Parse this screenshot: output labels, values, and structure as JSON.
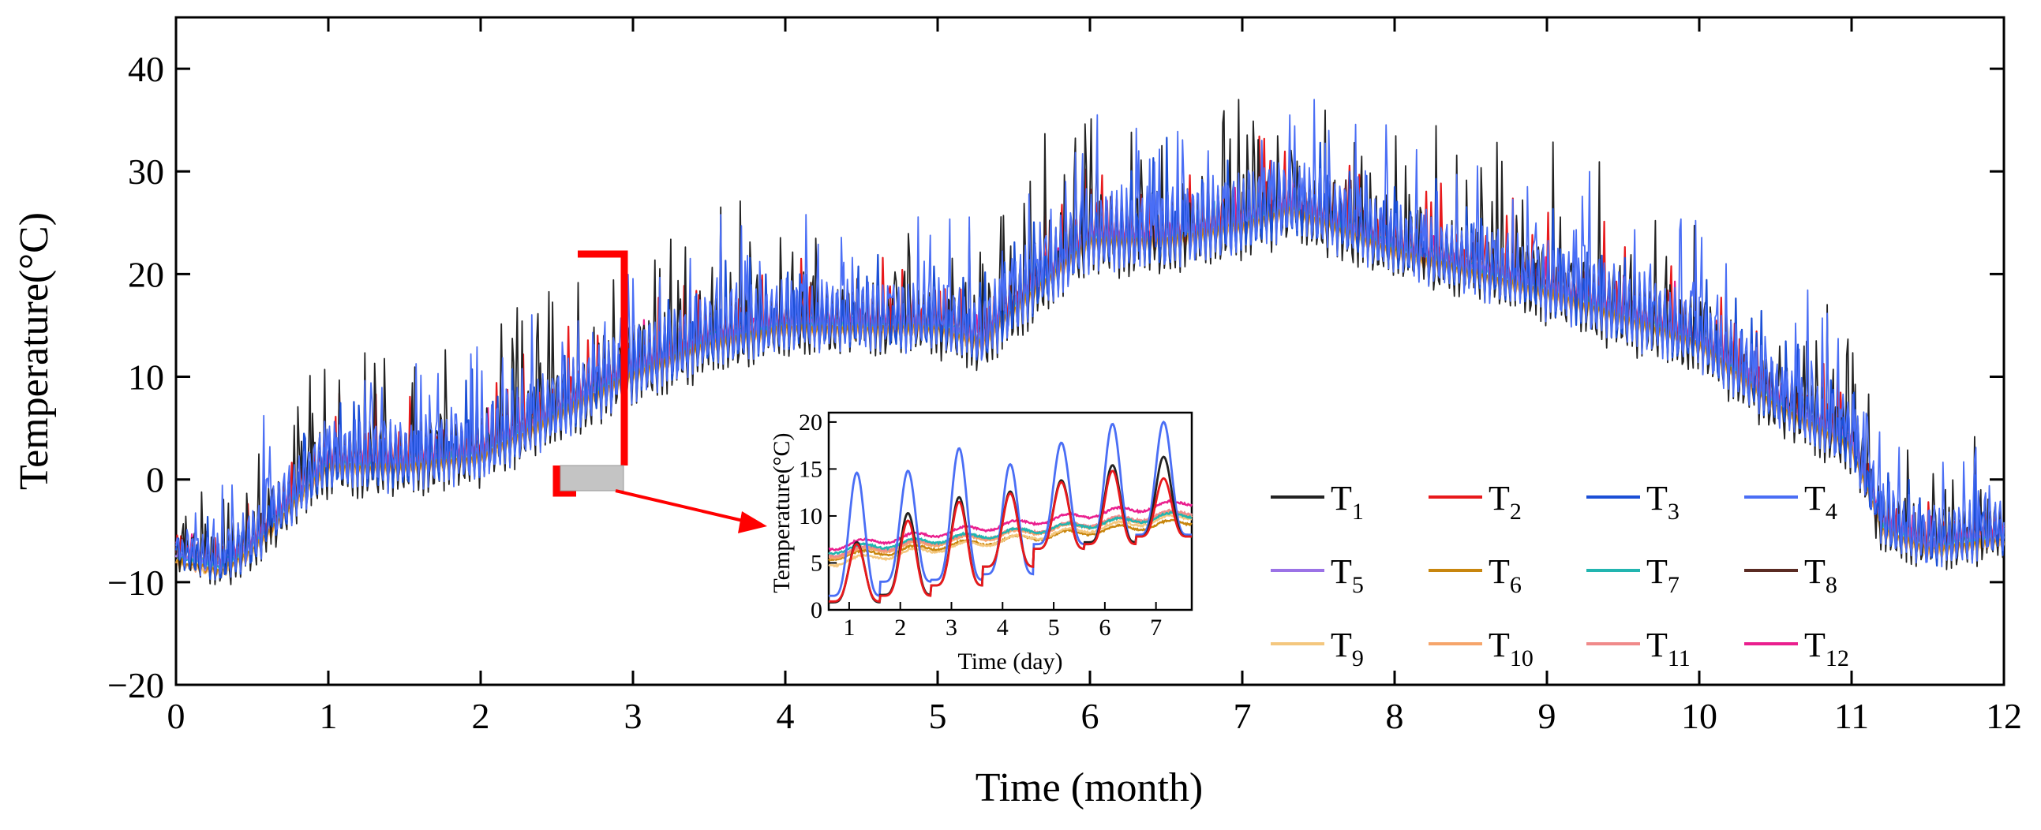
{
  "chart_data": {
    "type": "line",
    "main": {
      "xlabel": "Time (month)",
      "ylabel": "Temperature(°C)",
      "xlim": [
        0,
        12
      ],
      "ylim": [
        -20,
        45
      ],
      "xticks": [
        0,
        1,
        2,
        3,
        4,
        5,
        6,
        7,
        8,
        9,
        10,
        11,
        12
      ],
      "yticks": [
        -20,
        -10,
        0,
        10,
        20,
        30,
        40
      ],
      "grid": false,
      "legend_placement": "bottom-right",
      "legend": [
        {
          "base": "T",
          "sub": "1",
          "color": "#222222"
        },
        {
          "base": "T",
          "sub": "2",
          "color": "#e8191c"
        },
        {
          "base": "T",
          "sub": "3",
          "color": "#1b4fd6"
        },
        {
          "base": "T",
          "sub": "4",
          "color": "#4a6ef5"
        },
        {
          "base": "T",
          "sub": "5",
          "color": "#9b72e6"
        },
        {
          "base": "T",
          "sub": "6",
          "color": "#c8860e"
        },
        {
          "base": "T",
          "sub": "7",
          "color": "#22b5b0"
        },
        {
          "base": "T",
          "sub": "8",
          "color": "#5a2b23"
        },
        {
          "base": "T",
          "sub": "9",
          "color": "#f4c77e"
        },
        {
          "base": "T",
          "sub": "10",
          "color": "#f6a56b"
        },
        {
          "base": "T",
          "sub": "11",
          "color": "#f08a8a"
        },
        {
          "base": "T",
          "sub": "12",
          "color": "#ea1f8e"
        }
      ],
      "mean_profile": {
        "x": [
          0,
          0.3,
          0.5,
          0.8,
          1.0,
          1.5,
          2.0,
          2.5,
          3.0,
          3.5,
          4.0,
          4.5,
          5.0,
          5.3,
          5.4,
          6.0,
          6.5,
          7.0,
          7.3,
          7.5,
          8.0,
          8.5,
          9.0,
          9.5,
          10.0,
          10.5,
          11.0,
          11.2,
          11.5,
          12.0
        ],
        "y": [
          -7,
          -8,
          -6,
          -1,
          2,
          2,
          3,
          7,
          11,
          14,
          15.5,
          15.5,
          15.5,
          14,
          16,
          24,
          24,
          25.5,
          27,
          26,
          23,
          21,
          19,
          16.5,
          14,
          8,
          4,
          -4,
          -6,
          -5
        ],
        "spike_amplitude": [
          4,
          6,
          8,
          8,
          9,
          9,
          9,
          10,
          10,
          10,
          9,
          9,
          9,
          9,
          10,
          11,
          11,
          11,
          10,
          10,
          9,
          9,
          10,
          10,
          10,
          9,
          9,
          8,
          8,
          7
        ]
      },
      "peak_values": {
        "T1_max": 36.5,
        "T4_max": 36,
        "T1_min": -13,
        "T4_min": -12
      }
    },
    "inset": {
      "xlabel": "Time (day)",
      "ylabel": "Temperature(°C)",
      "xlim": [
        0.6,
        7.7
      ],
      "ylim": [
        0,
        21
      ],
      "xticks": [
        1,
        2,
        3,
        4,
        5,
        6,
        7
      ],
      "yticks": [
        0,
        5,
        10,
        15,
        20
      ],
      "series": [
        {
          "name": "T4",
          "peaks": [
            14.6,
            14.8,
            17.2,
            15.5,
            17.8,
            19.8,
            20.0
          ],
          "troughs": [
            1.5,
            3.0,
            3.2,
            3.8,
            7.0,
            7.0,
            8.0
          ]
        },
        {
          "name": "T1",
          "peaks": [
            7.2,
            10.3,
            12.0,
            12.6,
            13.8,
            15.4,
            16.3
          ],
          "troughs": [
            0.8,
            1.6,
            2.6,
            4.6,
            6.5,
            7.2,
            7.8
          ]
        },
        {
          "name": "T2",
          "peaks": [
            7.0,
            9.5,
            11.5,
            12.4,
            13.6,
            14.8,
            14.0
          ],
          "troughs": [
            0.9,
            1.5,
            2.6,
            4.6,
            6.5,
            7.0,
            7.8
          ]
        },
        {
          "name": "T12",
          "linear": [
            6.7,
            11.5
          ]
        },
        {
          "name": "T6",
          "linear": [
            5.6,
            9.4
          ]
        },
        {
          "name": "T9",
          "linear": [
            5.0,
            10.0
          ]
        },
        {
          "name": "T10",
          "linear": [
            5.8,
            10.3
          ]
        },
        {
          "name": "T11",
          "linear": [
            6.0,
            10.5
          ]
        },
        {
          "name": "T7",
          "linear": [
            6.3,
            10.2
          ]
        }
      ]
    }
  }
}
